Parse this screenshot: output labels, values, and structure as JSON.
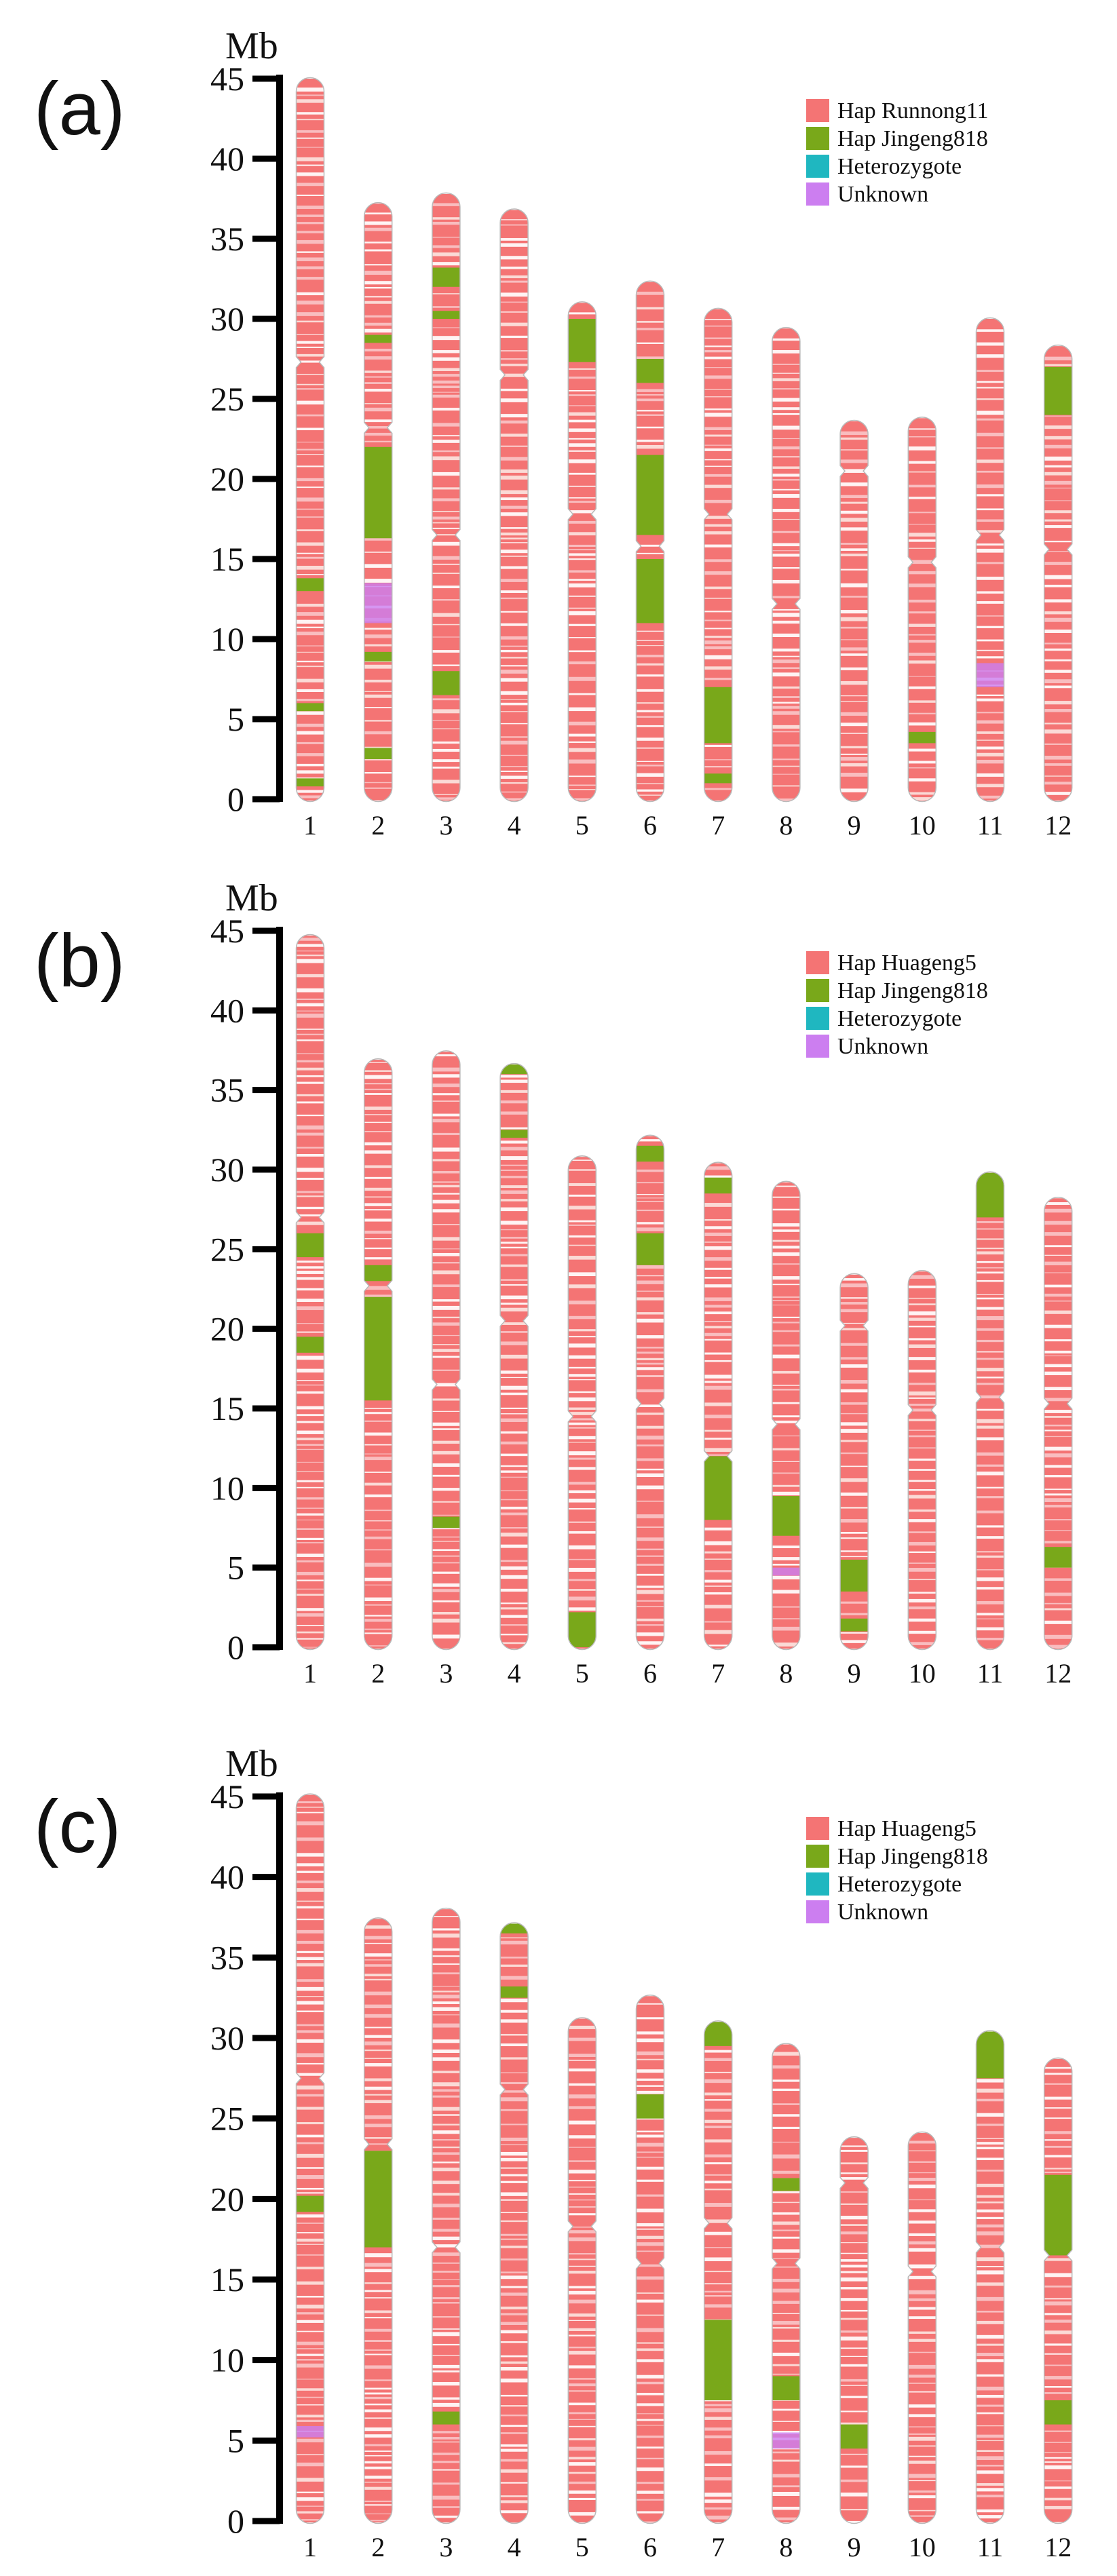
{
  "chart_data": [
    {
      "type": "chromosome_ideogram",
      "panel": "(a)",
      "ylabel": "Mb",
      "ylim": [
        0,
        45
      ],
      "yticks": [
        "0",
        "5",
        "10",
        "15",
        "20",
        "25",
        "30",
        "35",
        "40",
        "45"
      ],
      "legend": [
        {
          "label": "Hap Runnong11",
          "color": "#f47474"
        },
        {
          "label": "Hap Jingeng818",
          "color": "#79a81a"
        },
        {
          "label": "Heterozygote",
          "color": "#1fb7c0"
        },
        {
          "label": "Unknown",
          "color": "#cc7ef0"
        }
      ],
      "chromosomes": [
        {
          "name": "1",
          "length": 45.0,
          "centromere": 27.3,
          "green": [
            [
              13.0,
              13.8
            ],
            [
              5.5,
              6.0
            ],
            [
              0.8,
              1.3
            ]
          ],
          "purple": []
        },
        {
          "name": "2",
          "length": 37.2,
          "centromere": 23.2,
          "green": [
            [
              16.3,
              22.0
            ],
            [
              28.5,
              29.0
            ],
            [
              2.5,
              3.2
            ],
            [
              8.6,
              9.2
            ]
          ],
          "purple": [
            [
              11.0,
              13.5
            ]
          ]
        },
        {
          "name": "3",
          "length": 37.8,
          "centromere": 16.5,
          "green": [
            [
              6.5,
              8.0
            ],
            [
              32.0,
              33.2
            ],
            [
              30.0,
              30.5
            ]
          ],
          "purple": []
        },
        {
          "name": "4",
          "length": 36.8,
          "centromere": 26.5,
          "green": [],
          "purple": []
        },
        {
          "name": "5",
          "length": 31.0,
          "centromere": 17.8,
          "green": [
            [
              27.3,
              30.0
            ]
          ],
          "purple": []
        },
        {
          "name": "6",
          "length": 32.3,
          "centromere": 15.8,
          "green": [
            [
              16.5,
              21.5
            ],
            [
              11.0,
              15.0
            ],
            [
              26.0,
              27.5
            ]
          ],
          "purple": []
        },
        {
          "name": "7",
          "length": 30.6,
          "centromere": 17.8,
          "green": [
            [
              3.5,
              7.0
            ],
            [
              1.0,
              1.6
            ]
          ],
          "purple": []
        },
        {
          "name": "8",
          "length": 29.4,
          "centromere": 12.2,
          "green": [],
          "purple": []
        },
        {
          "name": "9",
          "length": 23.6,
          "centromere": 20.5,
          "green": [],
          "purple": []
        },
        {
          "name": "10",
          "length": 23.8,
          "centromere": 14.8,
          "green": [
            [
              3.5,
              4.2
            ]
          ],
          "purple": []
        },
        {
          "name": "11",
          "length": 30.0,
          "centromere": 16.5,
          "green": [],
          "purple": [
            [
              7.0,
              8.5
            ]
          ]
        },
        {
          "name": "12",
          "length": 28.3,
          "centromere": 15.6,
          "green": [
            [
              24.0,
              27.0
            ]
          ],
          "purple": []
        }
      ]
    },
    {
      "type": "chromosome_ideogram",
      "panel": "(b)",
      "ylabel": "Mb",
      "ylim": [
        0,
        45
      ],
      "yticks": [
        "0",
        "5",
        "10",
        "15",
        "20",
        "25",
        "30",
        "35",
        "40",
        "45"
      ],
      "legend": [
        {
          "label": "Hap Huageng5",
          "color": "#f47474"
        },
        {
          "label": "Hap Jingeng818",
          "color": "#79a81a"
        },
        {
          "label": "Heterozygote",
          "color": "#1fb7c0"
        },
        {
          "label": "Unknown",
          "color": "#cc7ef0"
        }
      ],
      "chromosomes": [
        {
          "name": "1",
          "length": 44.7,
          "centromere": 27.0,
          "green": [
            [
              24.5,
              26.0
            ],
            [
              18.5,
              19.5
            ]
          ],
          "purple": []
        },
        {
          "name": "2",
          "length": 36.9,
          "centromere": 22.7,
          "green": [
            [
              15.5,
              22.0
            ],
            [
              23.0,
              24.0
            ]
          ],
          "purple": []
        },
        {
          "name": "3",
          "length": 37.4,
          "centromere": 16.5,
          "green": [
            [
              7.5,
              8.2
            ]
          ],
          "purple": []
        },
        {
          "name": "4",
          "length": 36.6,
          "centromere": 20.5,
          "green": [
            [
              36.0,
              36.6
            ],
            [
              32.0,
              32.5
            ]
          ],
          "purple": []
        },
        {
          "name": "5",
          "length": 30.8,
          "centromere": 14.5,
          "green": [
            [
              0.0,
              2.2
            ]
          ],
          "purple": []
        },
        {
          "name": "6",
          "length": 32.1,
          "centromere": 15.3,
          "green": [
            [
              30.5,
              31.5
            ],
            [
              24.0,
              26.0
            ]
          ],
          "purple": []
        },
        {
          "name": "7",
          "length": 30.4,
          "centromere": 12.0,
          "green": [
            [
              8.0,
              12.0
            ],
            [
              28.5,
              29.5
            ]
          ],
          "purple": []
        },
        {
          "name": "8",
          "length": 29.2,
          "centromere": 14.0,
          "green": [
            [
              7.0,
              9.5
            ]
          ],
          "purple": [
            [
              4.5,
              5.0
            ]
          ]
        },
        {
          "name": "9",
          "length": 23.4,
          "centromere": 20.2,
          "green": [
            [
              3.5,
              5.5
            ],
            [
              1.0,
              1.8
            ]
          ],
          "purple": []
        },
        {
          "name": "10",
          "length": 23.6,
          "centromere": 14.9,
          "green": [],
          "purple": []
        },
        {
          "name": "11",
          "length": 29.8,
          "centromere": 15.7,
          "green": [
            [
              27.0,
              29.8
            ]
          ],
          "purple": []
        },
        {
          "name": "12",
          "length": 28.2,
          "centromere": 15.3,
          "green": [
            [
              5.0,
              6.3
            ]
          ],
          "purple": []
        }
      ]
    },
    {
      "type": "chromosome_ideogram",
      "panel": "(c)",
      "ylabel": "Mb",
      "ylim": [
        0,
        45
      ],
      "yticks": [
        "0",
        "5",
        "10",
        "15",
        "20",
        "25",
        "30",
        "35",
        "40",
        "45"
      ],
      "legend": [
        {
          "label": "Hap Huageng5",
          "color": "#f47474"
        },
        {
          "label": "Hap Jingeng818",
          "color": "#79a81a"
        },
        {
          "label": "Heterozygote",
          "color": "#1fb7c0"
        },
        {
          "label": "Unknown",
          "color": "#cc7ef0"
        }
      ],
      "chromosomes": [
        {
          "name": "1",
          "length": 45.1,
          "centromere": 27.5,
          "green": [
            [
              19.2,
              20.2
            ]
          ],
          "purple": [
            [
              5.2,
              5.9
            ]
          ]
        },
        {
          "name": "2",
          "length": 37.4,
          "centromere": 23.4,
          "green": [
            [
              17.0,
              23.0
            ]
          ],
          "purple": []
        },
        {
          "name": "3",
          "length": 38.0,
          "centromere": 17.0,
          "green": [
            [
              6.0,
              6.8
            ]
          ],
          "purple": []
        },
        {
          "name": "4",
          "length": 37.1,
          "centromere": 26.8,
          "green": [
            [
              36.5,
              37.1
            ],
            [
              32.5,
              33.2
            ]
          ],
          "purple": []
        },
        {
          "name": "5",
          "length": 31.2,
          "centromere": 18.3,
          "green": [],
          "purple": []
        },
        {
          "name": "6",
          "length": 32.6,
          "centromere": 16.0,
          "green": [
            [
              25.0,
              26.5
            ]
          ],
          "purple": []
        },
        {
          "name": "7",
          "length": 31.0,
          "centromere": 18.5,
          "green": [
            [
              7.5,
              12.5
            ],
            [
              29.5,
              31.0
            ]
          ],
          "purple": []
        },
        {
          "name": "8",
          "length": 29.6,
          "centromere": 16.0,
          "green": [
            [
              7.5,
              9.0
            ],
            [
              20.5,
              21.3
            ]
          ],
          "purple": [
            [
              4.5,
              5.5
            ]
          ]
        },
        {
          "name": "9",
          "length": 23.8,
          "centromere": 21.0,
          "green": [
            [
              4.5,
              6.0
            ]
          ],
          "purple": []
        },
        {
          "name": "10",
          "length": 24.1,
          "centromere": 15.5,
          "green": [],
          "purple": []
        },
        {
          "name": "11",
          "length": 30.4,
          "centromere": 17.0,
          "green": [
            [
              27.5,
              30.4
            ]
          ],
          "purple": []
        },
        {
          "name": "12",
          "length": 28.7,
          "centromere": 16.5,
          "green": [
            [
              16.5,
              21.5
            ],
            [
              6.0,
              7.5
            ]
          ],
          "purple": []
        }
      ]
    }
  ]
}
